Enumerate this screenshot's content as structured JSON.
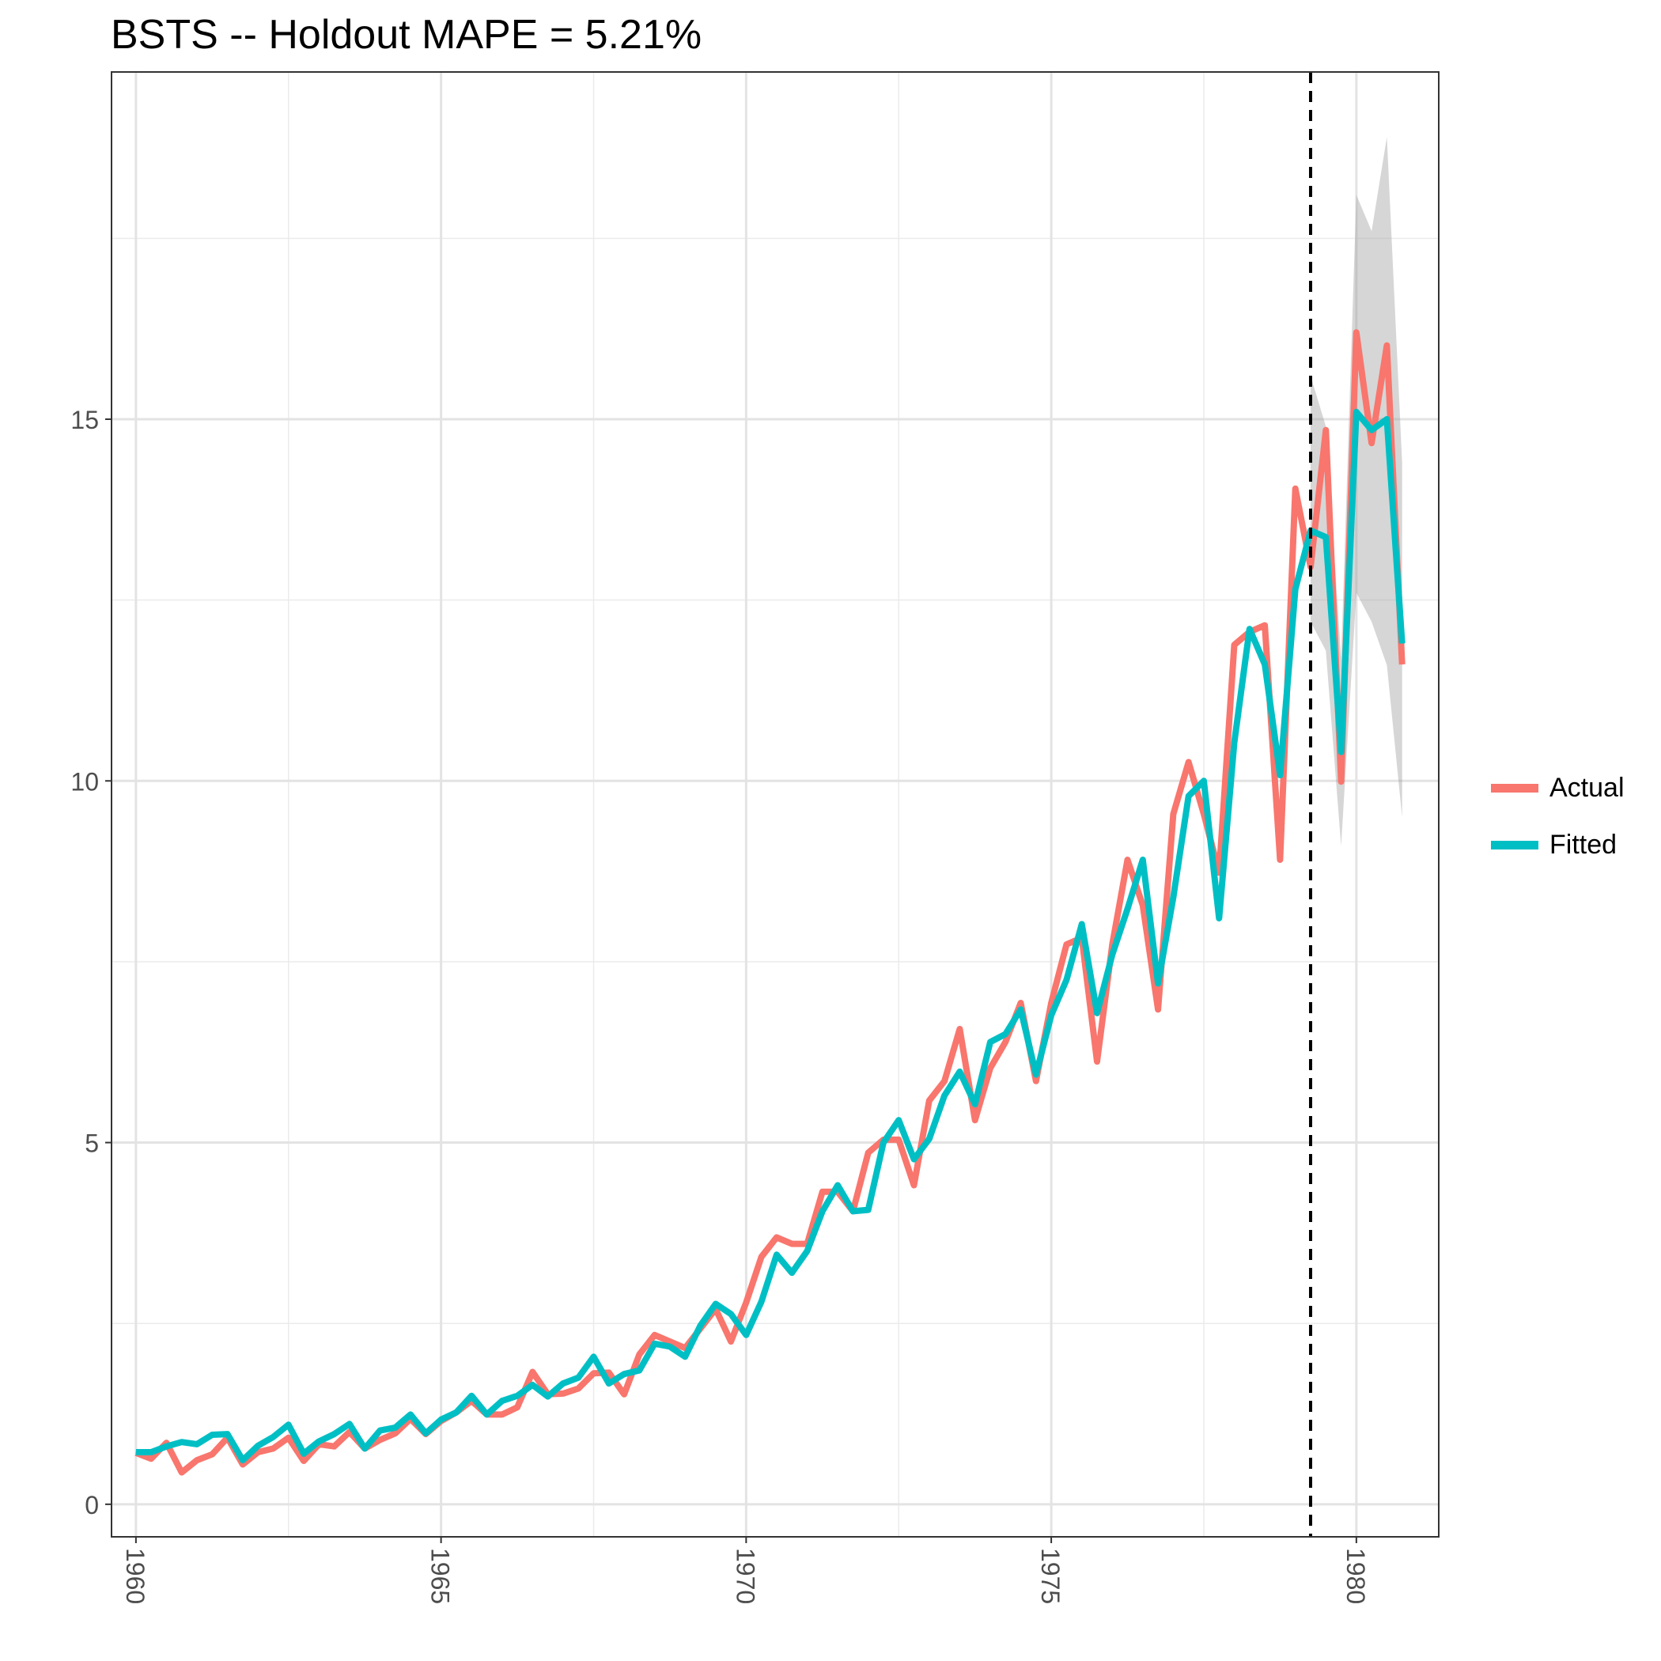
{
  "chart_data": {
    "type": "line",
    "title": "BSTS -- Holdout MAPE = 5.21%",
    "xlabel": "",
    "ylabel": "",
    "xlim": [
      1959.6,
      1981.35
    ],
    "ylim": [
      -0.45,
      19.8
    ],
    "x_ticks": [
      1960,
      1965,
      1970,
      1975,
      1980
    ],
    "y_ticks": [
      0,
      5,
      10,
      15
    ],
    "grid": true,
    "legend_position": "right",
    "holdout_start": 1979.25,
    "series": [
      {
        "name": "Actual",
        "color": "#F8766D",
        "x": [
          1960,
          1960.25,
          1960.5,
          1960.75,
          1961,
          1961.25,
          1961.5,
          1961.75,
          1962,
          1962.25,
          1962.5,
          1962.75,
          1963,
          1963.25,
          1963.5,
          1963.75,
          1964,
          1964.25,
          1964.5,
          1964.75,
          1965,
          1965.25,
          1965.5,
          1965.75,
          1966,
          1966.25,
          1966.5,
          1966.75,
          1967,
          1967.25,
          1967.5,
          1967.75,
          1968,
          1968.25,
          1968.5,
          1968.75,
          1969,
          1969.25,
          1969.5,
          1969.75,
          1970,
          1970.25,
          1970.5,
          1970.75,
          1971,
          1971.25,
          1971.5,
          1971.75,
          1972,
          1972.25,
          1972.5,
          1972.75,
          1973,
          1973.25,
          1973.5,
          1973.75,
          1974,
          1974.25,
          1974.5,
          1974.75,
          1975,
          1975.25,
          1975.5,
          1975.75,
          1976,
          1976.25,
          1976.5,
          1976.75,
          1977,
          1977.25,
          1977.5,
          1977.75,
          1978,
          1978.25,
          1978.5,
          1978.75,
          1979,
          1979.25,
          1979.5,
          1979.75,
          1980,
          1980.25,
          1980.5,
          1980.75
        ],
        "values": [
          0.71,
          0.63,
          0.85,
          0.44,
          0.61,
          0.69,
          0.92,
          0.55,
          0.72,
          0.77,
          0.92,
          0.6,
          0.83,
          0.8,
          1.0,
          0.77,
          0.89,
          0.98,
          1.18,
          0.97,
          1.15,
          1.27,
          1.43,
          1.24,
          1.24,
          1.34,
          1.83,
          1.52,
          1.53,
          1.6,
          1.81,
          1.82,
          1.52,
          2.07,
          2.34,
          2.25,
          2.16,
          2.43,
          2.7,
          2.25,
          2.79,
          3.42,
          3.69,
          3.6,
          3.6,
          4.32,
          4.32,
          4.05,
          4.86,
          5.04,
          5.04,
          4.41,
          5.58,
          5.85,
          6.57,
          5.31,
          6.03,
          6.39,
          6.93,
          5.85,
          6.93,
          7.74,
          7.83,
          6.12,
          7.74,
          8.91,
          8.28,
          6.84,
          9.54,
          10.26,
          9.54,
          8.73,
          11.88,
          12.06,
          12.15,
          8.91,
          14.04,
          12.96,
          14.85,
          9.99,
          16.2,
          14.67,
          16.02,
          11.61
        ]
      },
      {
        "name": "Fitted",
        "color": "#00BFC4",
        "x": [
          1960,
          1960.25,
          1960.5,
          1960.75,
          1961,
          1961.25,
          1961.5,
          1961.75,
          1962,
          1962.25,
          1962.5,
          1962.75,
          1963,
          1963.25,
          1963.5,
          1963.75,
          1964,
          1964.25,
          1964.5,
          1964.75,
          1965,
          1965.25,
          1965.5,
          1965.75,
          1966,
          1966.25,
          1966.5,
          1966.75,
          1967,
          1967.25,
          1967.5,
          1967.75,
          1968,
          1968.25,
          1968.5,
          1968.75,
          1969,
          1969.25,
          1969.5,
          1969.75,
          1970,
          1970.25,
          1970.5,
          1970.75,
          1971,
          1971.25,
          1971.5,
          1971.75,
          1972,
          1972.25,
          1972.5,
          1972.75,
          1973,
          1973.25,
          1973.5,
          1973.75,
          1974,
          1974.25,
          1974.5,
          1974.75,
          1975,
          1975.25,
          1975.5,
          1975.75,
          1976,
          1976.25,
          1976.5,
          1976.75,
          1977,
          1977.25,
          1977.5,
          1977.75,
          1978,
          1978.25,
          1978.5,
          1978.75,
          1979,
          1979.25,
          1979.5,
          1979.75,
          1980,
          1980.25,
          1980.5,
          1980.75
        ],
        "values": [
          0.72,
          0.72,
          0.8,
          0.86,
          0.83,
          0.96,
          0.97,
          0.61,
          0.81,
          0.93,
          1.1,
          0.7,
          0.87,
          0.97,
          1.11,
          0.77,
          1.02,
          1.06,
          1.24,
          0.98,
          1.17,
          1.27,
          1.5,
          1.24,
          1.43,
          1.5,
          1.65,
          1.49,
          1.67,
          1.75,
          2.04,
          1.67,
          1.8,
          1.85,
          2.22,
          2.18,
          2.04,
          2.47,
          2.77,
          2.63,
          2.34,
          2.8,
          3.45,
          3.2,
          3.5,
          4.05,
          4.41,
          4.05,
          4.07,
          5.0,
          5.31,
          4.77,
          5.05,
          5.65,
          5.98,
          5.53,
          6.39,
          6.5,
          6.84,
          5.94,
          6.76,
          7.25,
          8.02,
          6.79,
          7.6,
          8.23,
          8.91,
          7.2,
          8.39,
          9.79,
          10.0,
          8.1,
          10.53,
          12.1,
          11.61,
          10.08,
          12.65,
          13.46,
          13.37,
          10.4,
          15.1,
          14.85,
          15.0,
          11.9
        ]
      }
    ],
    "interval": {
      "x": [
        1979.25,
        1979.5,
        1979.75,
        1980,
        1980.25,
        1980.5,
        1980.75
      ],
      "lower": [
        12.2,
        11.8,
        9.1,
        12.6,
        12.2,
        11.6,
        9.5
      ],
      "upper": [
        15.6,
        14.9,
        11.7,
        18.1,
        17.6,
        18.9,
        14.4
      ]
    }
  }
}
